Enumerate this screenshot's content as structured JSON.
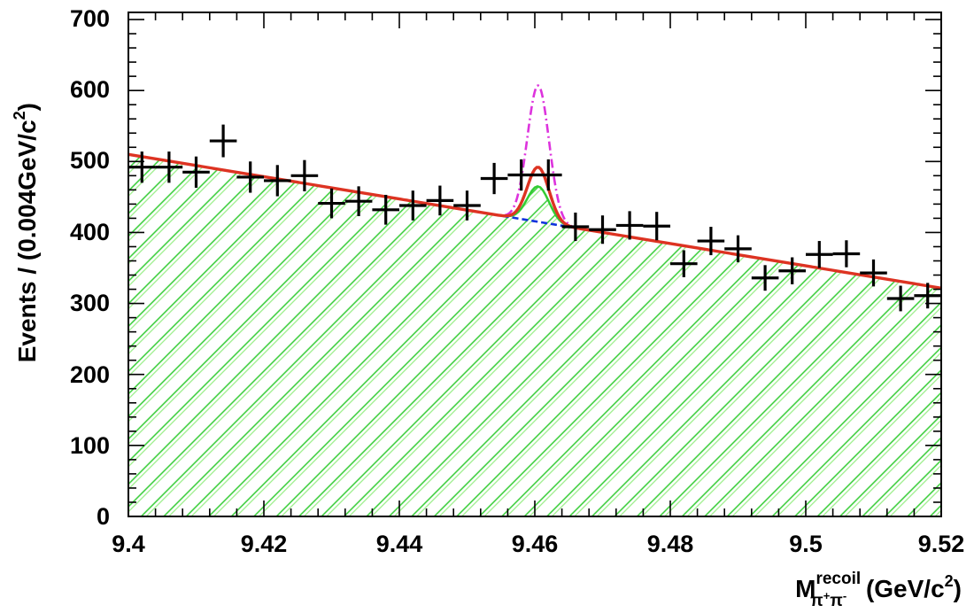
{
  "chart_data": {
    "type": "scatter",
    "title": "",
    "xlabel": {
      "main": "M",
      "superscript": "recoil",
      "subscript_base": "π",
      "subscript_plus": "+",
      "subscript_base2": "π",
      "subscript_minus": "-",
      "units_open": " (GeV/c",
      "units_power": "2",
      "units_close": ")"
    },
    "ylabel": {
      "main": "Events / (0.004GeV/c",
      "power": "2",
      "close": ")"
    },
    "xlim": [
      9.4,
      9.52
    ],
    "ylim": [
      0,
      710
    ],
    "x_ticks": [
      "9.4",
      "9.42",
      "9.44",
      "9.46",
      "9.48",
      "9.5",
      "9.52"
    ],
    "y_ticks": [
      "0",
      "100",
      "200",
      "300",
      "400",
      "500",
      "600",
      "700"
    ],
    "bin_width": 0.004,
    "series": [
      {
        "name": "data",
        "type": "points_with_errors",
        "color": "#000000",
        "points": [
          {
            "x": 9.402,
            "y": 492,
            "err": 22
          },
          {
            "x": 9.406,
            "y": 492,
            "err": 22
          },
          {
            "x": 9.41,
            "y": 485,
            "err": 22
          },
          {
            "x": 9.414,
            "y": 529,
            "err": 23
          },
          {
            "x": 9.418,
            "y": 478,
            "err": 22
          },
          {
            "x": 9.422,
            "y": 473,
            "err": 22
          },
          {
            "x": 9.426,
            "y": 480,
            "err": 22
          },
          {
            "x": 9.43,
            "y": 441,
            "err": 21
          },
          {
            "x": 9.434,
            "y": 444,
            "err": 21
          },
          {
            "x": 9.438,
            "y": 432,
            "err": 21
          },
          {
            "x": 9.442,
            "y": 438,
            "err": 21
          },
          {
            "x": 9.446,
            "y": 445,
            "err": 21
          },
          {
            "x": 9.45,
            "y": 438,
            "err": 21
          },
          {
            "x": 9.454,
            "y": 476,
            "err": 22
          },
          {
            "x": 9.458,
            "y": 481,
            "err": 22
          },
          {
            "x": 9.462,
            "y": 481,
            "err": 22
          },
          {
            "x": 9.466,
            "y": 408,
            "err": 20
          },
          {
            "x": 9.47,
            "y": 404,
            "err": 20
          },
          {
            "x": 9.474,
            "y": 410,
            "err": 20
          },
          {
            "x": 9.478,
            "y": 409,
            "err": 20
          },
          {
            "x": 9.482,
            "y": 356,
            "err": 19
          },
          {
            "x": 9.486,
            "y": 388,
            "err": 20
          },
          {
            "x": 9.49,
            "y": 377,
            "err": 19
          },
          {
            "x": 9.494,
            "y": 336,
            "err": 18
          },
          {
            "x": 9.498,
            "y": 346,
            "err": 19
          },
          {
            "x": 9.502,
            "y": 369,
            "err": 19
          },
          {
            "x": 9.506,
            "y": 370,
            "err": 19
          },
          {
            "x": 9.51,
            "y": 343,
            "err": 19
          },
          {
            "x": 9.514,
            "y": 307,
            "err": 18
          },
          {
            "x": 9.518,
            "y": 311,
            "err": 18
          }
        ]
      },
      {
        "name": "background (green hatched)",
        "type": "area",
        "color": "#33cc33",
        "model": {
          "a": 510,
          "slope": -1570,
          "peak_mass": 9.4605,
          "peak_amp": 50,
          "peak_sigma": 0.0016
        }
      },
      {
        "name": "background only (blue dashed)",
        "type": "line",
        "color": "#1133dd",
        "x_range": [
          9.451,
          9.4665
        ],
        "model": {
          "a": 510,
          "slope": -1570
        }
      },
      {
        "name": "total fit (red)",
        "type": "line",
        "color": "#dd3322",
        "model": {
          "a": 510,
          "slope": -1570,
          "peak_mass": 9.4605,
          "peak_amp": 77,
          "peak_sigma": 0.0016
        }
      },
      {
        "name": "upper limit signal (magenta dash-dot)",
        "type": "line",
        "color": "#dd33dd",
        "x_range": [
          9.453,
          9.468
        ],
        "model": {
          "a": 510,
          "slope": -1570,
          "peak_mass": 9.4605,
          "peak_amp": 192,
          "peak_sigma": 0.0016
        }
      }
    ]
  }
}
